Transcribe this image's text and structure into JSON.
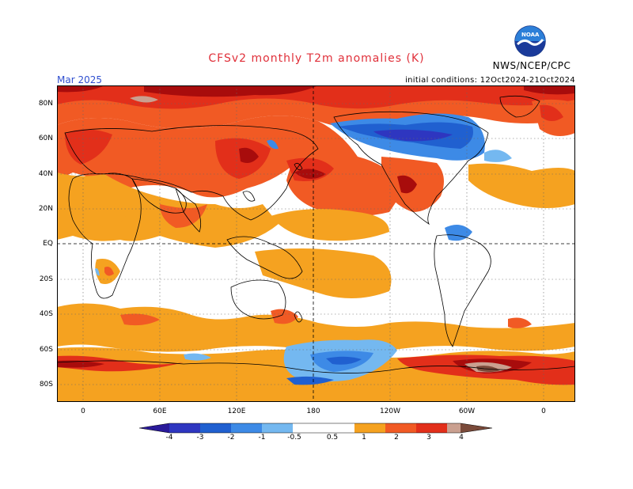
{
  "header": {
    "title": "CFSv2 monthly T2m anomalies (K)",
    "target_month": "Mar 2025",
    "initial_conditions": "initial conditions: 12Oct2024-21Oct2024",
    "org_label": "NWS/NCEP/CPC",
    "logo_text": "NOAA"
  },
  "map": {
    "lat_labels": [
      "80N",
      "60N",
      "40N",
      "20N",
      "EQ",
      "20S",
      "40S",
      "60S",
      "80S"
    ],
    "lon_labels": [
      "0",
      "60E",
      "120E",
      "180",
      "120W",
      "60W",
      "0"
    ]
  },
  "colorbar": {
    "levels": [
      "-4",
      "-3",
      "-2",
      "-1",
      "-0.5",
      "0.5",
      "1",
      "2",
      "3",
      "4"
    ],
    "colors": {
      "lt_-4": "#2a1a9a",
      "-4_-3": "#2e36c0",
      "-3_-2": "#2060d0",
      "-2_-1": "#3d8ae6",
      "-1_-0.5": "#74b8f0",
      "neutral": "#ffffff",
      "0.5_1": "#f5a220",
      "1_2": "#f15a24",
      "2_3": "#e22f1a",
      "3_4": "#a80c0c",
      "4_5": "#caa090",
      "gt_5": "#7a4a3a"
    }
  }
}
